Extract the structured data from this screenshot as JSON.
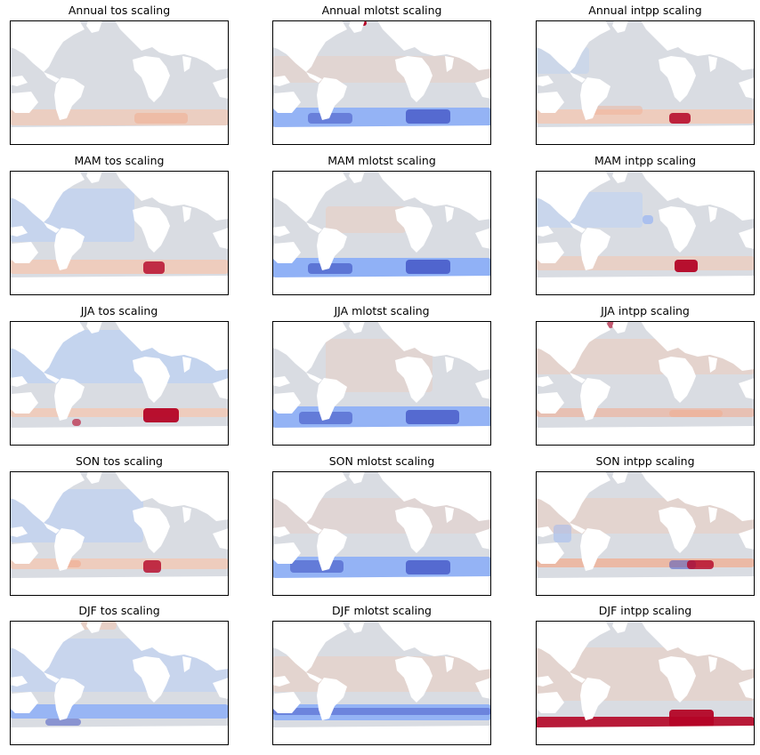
{
  "chart_data": {
    "type": "heatmap",
    "layout": "5 rows x 3 columns of map panels",
    "colormap": "coolwarm",
    "colors": {
      "land": "#ffffff",
      "neutral_ocean": "#d9dce2",
      "positive": "#b40426",
      "negative": "#3b4cc0",
      "frame": "#000000"
    },
    "axes": {
      "ticks": false,
      "grid": false,
      "legend": "none"
    },
    "panels": [
      {
        "title": "Annual tos scaling",
        "row": 0,
        "col": 0
      },
      {
        "title": "Annual mlotst scaling",
        "row": 0,
        "col": 1
      },
      {
        "title": "Annual intpp scaling",
        "row": 0,
        "col": 2
      },
      {
        "title": "MAM tos scaling",
        "row": 1,
        "col": 0
      },
      {
        "title": "MAM mlotst scaling",
        "row": 1,
        "col": 1
      },
      {
        "title": "MAM intpp scaling",
        "row": 1,
        "col": 2
      },
      {
        "title": "JJA tos scaling",
        "row": 2,
        "col": 0
      },
      {
        "title": "JJA mlotst scaling",
        "row": 2,
        "col": 1
      },
      {
        "title": "JJA intpp scaling",
        "row": 2,
        "col": 2
      },
      {
        "title": "SON tos scaling",
        "row": 3,
        "col": 0
      },
      {
        "title": "SON mlotst scaling",
        "row": 3,
        "col": 1
      },
      {
        "title": "SON intpp scaling",
        "row": 3,
        "col": 2
      },
      {
        "title": "DJF tos scaling",
        "row": 4,
        "col": 0
      },
      {
        "title": "DJF mlotst scaling",
        "row": 4,
        "col": 1
      },
      {
        "title": "DJF intpp scaling",
        "row": 4,
        "col": 2
      }
    ]
  }
}
